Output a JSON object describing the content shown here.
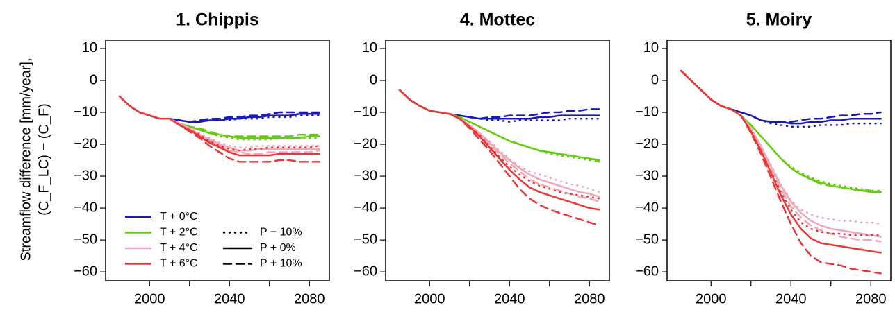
{
  "chart_data": [
    {
      "type": "line",
      "title": "1. Chippis",
      "ylabel": [
        "Streamflow difference [mm/year],",
        "(C_F_LC) − (C_F)"
      ],
      "x": [
        1985,
        1990,
        1995,
        2000,
        2005,
        2010,
        2015,
        2020,
        2025,
        2030,
        2035,
        2040,
        2045,
        2050,
        2055,
        2060,
        2065,
        2070,
        2075,
        2080,
        2085
      ],
      "xlim": [
        1978,
        2090
      ],
      "xticks": [
        2000,
        2040,
        2080
      ],
      "xminorticks": [
        2020,
        2060
      ],
      "ylim": [
        -62.8,
        12.6
      ],
      "yticks": [
        {
          "value": -60,
          "label": "−60"
        },
        {
          "value": -50,
          "label": "−50"
        },
        {
          "value": -40,
          "label": "−40"
        },
        {
          "value": -30,
          "label": "−30"
        },
        {
          "value": -20,
          "label": "−20"
        },
        {
          "value": -10,
          "label": "−10"
        },
        0,
        10
      ],
      "legend": {
        "colors": [
          {
            "name": "T + 0°C",
            "color": "#1a1ab8"
          },
          {
            "name": "T + 2°C",
            "color": "#66cc11"
          },
          {
            "name": "T + 4°C",
            "color": "#efa7b9"
          },
          {
            "name": "T + 6°C",
            "color": "#ee3535"
          }
        ],
        "styles": [
          {
            "name": "P − 10%",
            "dash": "dotted"
          },
          {
            "name": "P + 0%",
            "dash": "solid"
          },
          {
            "name": "P + 10%",
            "dash": "dashed"
          }
        ]
      },
      "series": [
        [
          [
            -5,
            -8,
            -10,
            -11,
            -12,
            -12,
            -12.5,
            -13,
            -13,
            -12.5,
            -12.5,
            -12.5,
            -12,
            -12,
            -12,
            -11.5,
            -11.5,
            -11.5,
            -11,
            -11,
            -11
          ],
          [
            -5,
            -8,
            -10,
            -11,
            -12,
            -12,
            -12.5,
            -13,
            -13,
            -12.5,
            -12.5,
            -12,
            -12,
            -11.5,
            -11.5,
            -11,
            -11,
            -11,
            -10.5,
            -10.5,
            -10.5
          ],
          [
            -5,
            -8,
            -10,
            -11,
            -12,
            -12,
            -12.5,
            -13,
            -12.5,
            -12,
            -12,
            -11.5,
            -11.5,
            -11,
            -11,
            -10.5,
            -10,
            -10,
            -10,
            -10,
            -10
          ]
        ],
        [
          [
            -5,
            -8,
            -10,
            -11,
            -12,
            -12,
            -13.5,
            -14.5,
            -15.5,
            -16.5,
            -17.5,
            -18,
            -18.5,
            -18.5,
            -18.5,
            -18.5,
            -18,
            -18,
            -18,
            -18,
            -18
          ],
          [
            -5,
            -8,
            -10,
            -11,
            -12,
            -12,
            -13.5,
            -14.5,
            -15.5,
            -16.5,
            -17,
            -17.5,
            -18,
            -18,
            -18,
            -18,
            -18,
            -18,
            -18,
            -17.5,
            -17.5
          ],
          [
            -5,
            -8,
            -10,
            -11,
            -12,
            -12,
            -13.5,
            -14.5,
            -15,
            -16,
            -17,
            -17.5,
            -17.5,
            -17.5,
            -17.5,
            -17.5,
            -17.5,
            -17.5,
            -17,
            -17,
            -17
          ]
        ],
        [
          [
            -5,
            -8,
            -10,
            -11,
            -12,
            -12,
            -13.5,
            -15,
            -16.5,
            -18,
            -19.5,
            -20.5,
            -21,
            -21,
            -20.5,
            -20.5,
            -20.5,
            -20.5,
            -20.5,
            -20.5,
            -20.5
          ],
          [
            -5,
            -8,
            -10,
            -11,
            -12,
            -12,
            -13.5,
            -15,
            -17,
            -18.5,
            -20,
            -21,
            -22,
            -22,
            -21.5,
            -21.5,
            -21.5,
            -21.5,
            -21.5,
            -21.5,
            -21.5
          ],
          [
            -5,
            -8,
            -10,
            -11,
            -12,
            -12,
            -13.5,
            -15,
            -17,
            -19,
            -20.5,
            -22,
            -22.5,
            -23,
            -23,
            -22.5,
            -22.5,
            -22.5,
            -22.5,
            -22.5,
            -22
          ]
        ],
        [
          [
            -5,
            -8,
            -10,
            -11,
            -12,
            -12,
            -14,
            -15.5,
            -17,
            -19,
            -20.5,
            -21.5,
            -22,
            -21.5,
            -21.5,
            -21,
            -21,
            -21,
            -21,
            -21,
            -20.5
          ],
          [
            -5,
            -8,
            -10,
            -11,
            -12,
            -12,
            -14,
            -15.5,
            -17.5,
            -19.5,
            -21,
            -22.5,
            -23.5,
            -23.5,
            -23.5,
            -23.5,
            -23,
            -23,
            -23,
            -23,
            -23
          ],
          [
            -5,
            -8,
            -10,
            -11,
            -12,
            -12,
            -14,
            -16,
            -18,
            -20.5,
            -22.5,
            -24.5,
            -25.5,
            -25.5,
            -25.5,
            -25.5,
            -25,
            -25,
            -25.5,
            -25.5,
            -25.5
          ]
        ]
      ]
    },
    {
      "type": "line",
      "title": "4. Mottec",
      "x": [
        1985,
        1990,
        1995,
        2000,
        2005,
        2010,
        2015,
        2020,
        2025,
        2030,
        2035,
        2040,
        2045,
        2050,
        2055,
        2060,
        2065,
        2070,
        2075,
        2080,
        2085
      ],
      "xlim": [
        1978,
        2090
      ],
      "xticks": [
        2000,
        2040,
        2080
      ],
      "xminorticks": [
        2020,
        2060
      ],
      "ylim": [
        -62.8,
        12.6
      ],
      "yticks": [
        {
          "value": -60,
          "label": "−60"
        },
        {
          "value": -50,
          "label": "−50"
        },
        {
          "value": -40,
          "label": "−40"
        },
        {
          "value": -30,
          "label": "−30"
        },
        {
          "value": -20,
          "label": "−20"
        },
        {
          "value": -10,
          "label": "−10"
        },
        0,
        10
      ],
      "series": [
        [
          [
            -3,
            -6,
            -8,
            -9.5,
            -10,
            -10.5,
            -11,
            -11.5,
            -12,
            -12.5,
            -12.5,
            -13,
            -12.5,
            -12.5,
            -12.5,
            -12.5,
            -12.5,
            -12,
            -12,
            -12,
            -12
          ],
          [
            -3,
            -6,
            -8,
            -9.5,
            -10,
            -10.5,
            -11,
            -11.5,
            -12,
            -12,
            -12,
            -12,
            -12,
            -12,
            -11.5,
            -11.5,
            -11,
            -11,
            -11,
            -11,
            -11
          ],
          [
            -3,
            -6,
            -8,
            -9.5,
            -10,
            -10.5,
            -11,
            -11.5,
            -12,
            -11.5,
            -11.5,
            -11,
            -11,
            -11,
            -10.5,
            -10,
            -10,
            -9.5,
            -9.5,
            -9,
            -9
          ]
        ],
        [
          [
            -3,
            -6,
            -8,
            -9.5,
            -10,
            -10.5,
            -11.5,
            -13,
            -14.5,
            -16,
            -17.5,
            -19,
            -20,
            -21,
            -22,
            -23,
            -23.5,
            -24,
            -24.5,
            -25,
            -25.5
          ],
          [
            -3,
            -6,
            -8,
            -9.5,
            -10,
            -10.5,
            -11.5,
            -13,
            -14.5,
            -16,
            -17.5,
            -19,
            -20,
            -21,
            -22,
            -22.5,
            -23,
            -23.5,
            -24,
            -24.5,
            -25
          ],
          [
            -3,
            -6,
            -8,
            -9.5,
            -10,
            -10.5,
            -11.5,
            -13,
            -14.5,
            -16,
            -17.5,
            -19,
            -20,
            -21,
            -22,
            -22.5,
            -23,
            -23.5,
            -24,
            -24.5,
            -25.5
          ]
        ],
        [
          [
            -3,
            -6,
            -8,
            -9.5,
            -10,
            -10.5,
            -12,
            -14,
            -16.5,
            -19,
            -22,
            -24.5,
            -27,
            -28.5,
            -29.5,
            -30.5,
            -31.5,
            -32.5,
            -33,
            -34,
            -35
          ],
          [
            -3,
            -6,
            -8,
            -9.5,
            -10,
            -10.5,
            -12,
            -14,
            -16.5,
            -19.5,
            -22.5,
            -25,
            -27.5,
            -29.5,
            -31,
            -32,
            -33,
            -34,
            -35,
            -35.5,
            -36.5
          ],
          [
            -3,
            -6,
            -8,
            -9.5,
            -10,
            -10.5,
            -12,
            -14,
            -17,
            -20,
            -23,
            -26,
            -28.5,
            -31,
            -32.5,
            -33.5,
            -34.5,
            -35.5,
            -36.5,
            -37,
            -38
          ]
        ],
        [
          [
            -3,
            -6,
            -8,
            -9.5,
            -10,
            -10.5,
            -12,
            -14.5,
            -17,
            -20.5,
            -24,
            -27,
            -29.5,
            -31.5,
            -33,
            -34,
            -35,
            -35.5,
            -36,
            -36.5,
            -37
          ],
          [
            -3,
            -6,
            -8,
            -9.5,
            -10,
            -10.5,
            -12,
            -14.5,
            -17.5,
            -21,
            -24.5,
            -28,
            -31,
            -33.5,
            -35,
            -36,
            -37,
            -38,
            -39,
            -40,
            -40.5
          ],
          [
            -3,
            -6,
            -8,
            -9.5,
            -10,
            -10.5,
            -12,
            -15,
            -18.5,
            -22,
            -26,
            -30,
            -34,
            -37,
            -39,
            -40.5,
            -41.5,
            -42.5,
            -43.5,
            -44.5,
            -45.5
          ]
        ]
      ]
    },
    {
      "type": "line",
      "title": "5. Moiry",
      "x": [
        1985,
        1990,
        1995,
        2000,
        2005,
        2010,
        2015,
        2020,
        2025,
        2030,
        2035,
        2040,
        2045,
        2050,
        2055,
        2060,
        2065,
        2070,
        2075,
        2080,
        2085
      ],
      "xlim": [
        1978,
        2090
      ],
      "xticks": [
        2000,
        2040,
        2080
      ],
      "xminorticks": [
        2020,
        2060
      ],
      "ylim": [
        -62.8,
        12.6
      ],
      "yticks": [
        {
          "value": -60,
          "label": "−60"
        },
        {
          "value": -50,
          "label": "−50"
        },
        {
          "value": -40,
          "label": "−40"
        },
        {
          "value": -30,
          "label": "−30"
        },
        {
          "value": -20,
          "label": "−20"
        },
        {
          "value": -10,
          "label": "−10"
        },
        0,
        10
      ],
      "series": [
        [
          [
            3,
            0,
            -3,
            -6,
            -8,
            -9,
            -10,
            -11,
            -12.5,
            -13.5,
            -14,
            -14.5,
            -14.5,
            -14.5,
            -14,
            -14,
            -14,
            -13.5,
            -13.5,
            -13.5,
            -13.5
          ],
          [
            3,
            0,
            -3,
            -6,
            -8,
            -9,
            -10,
            -11,
            -12.5,
            -13,
            -13,
            -13.5,
            -13.5,
            -13,
            -13,
            -12.5,
            -12.5,
            -12,
            -12,
            -12,
            -12
          ],
          [
            3,
            0,
            -3,
            -6,
            -8,
            -9,
            -10,
            -11,
            -12.5,
            -13,
            -13,
            -13,
            -12.5,
            -12,
            -12,
            -11.5,
            -11,
            -11,
            -10.5,
            -10.5,
            -10
          ]
        ],
        [
          [
            3,
            0,
            -3,
            -6,
            -8,
            -9,
            -11,
            -14,
            -17.5,
            -21,
            -24.5,
            -27,
            -29,
            -30.5,
            -31.5,
            -32.5,
            -33,
            -33.5,
            -34,
            -34.5,
            -34.5
          ],
          [
            3,
            0,
            -3,
            -6,
            -8,
            -9,
            -11,
            -14,
            -17.5,
            -21,
            -24.5,
            -27.5,
            -29.5,
            -31,
            -32,
            -33,
            -33.5,
            -34,
            -34.5,
            -35,
            -35
          ],
          [
            3,
            0,
            -3,
            -6,
            -8,
            -9,
            -11,
            -14,
            -17.5,
            -21,
            -24.5,
            -27.5,
            -29.5,
            -31,
            -32.5,
            -33,
            -33.5,
            -34,
            -34.5,
            -34.5,
            -35
          ]
        ],
        [
          [
            3,
            0,
            -3,
            -6,
            -8,
            -9,
            -11,
            -15,
            -20.5,
            -26.5,
            -32.5,
            -37.5,
            -40.5,
            -42,
            -43,
            -43.5,
            -44,
            -44,
            -44.5,
            -44.5,
            -45
          ],
          [
            3,
            0,
            -3,
            -6,
            -8,
            -9,
            -11,
            -15,
            -20.5,
            -27,
            -33,
            -38,
            -41.5,
            -44,
            -45.5,
            -46.5,
            -47,
            -47.5,
            -48,
            -48.5,
            -49
          ],
          [
            3,
            0,
            -3,
            -6,
            -8,
            -9,
            -11,
            -15,
            -21,
            -27.5,
            -34,
            -39.5,
            -43,
            -45.5,
            -47,
            -48,
            -49,
            -49.5,
            -50,
            -50,
            -50.5
          ]
        ],
        [
          [
            3,
            0,
            -3,
            -6,
            -8,
            -9,
            -11,
            -16,
            -22,
            -28.5,
            -35,
            -40.5,
            -44.5,
            -46.5,
            -47.5,
            -48,
            -48,
            -48.5,
            -48.5,
            -48.5,
            -48.5
          ],
          [
            3,
            0,
            -3,
            -6,
            -8,
            -9,
            -11,
            -16,
            -22,
            -29,
            -36,
            -42,
            -46.5,
            -49.5,
            -51,
            -51.5,
            -52,
            -52.5,
            -53,
            -53.5,
            -54
          ],
          [
            3,
            0,
            -3,
            -6,
            -8,
            -9,
            -11,
            -16.5,
            -23,
            -30.5,
            -38,
            -45,
            -51,
            -55,
            -57,
            -57.5,
            -58,
            -59,
            -59.5,
            -60,
            -60.5
          ]
        ]
      ]
    }
  ]
}
